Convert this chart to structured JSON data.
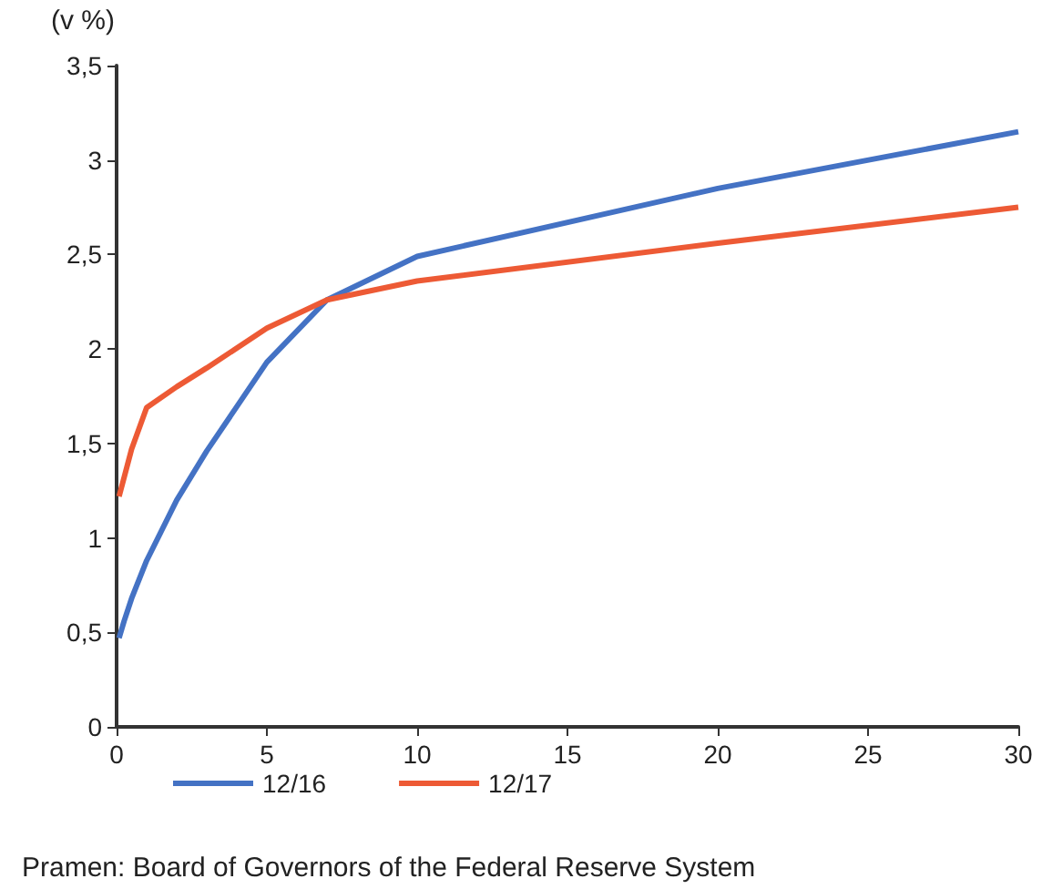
{
  "chart_data": {
    "type": "line",
    "ylabel": "(v %)",
    "x": [
      0.083,
      0.25,
      0.5,
      1,
      2,
      3,
      5,
      7,
      10,
      20,
      30
    ],
    "series": [
      {
        "name": "12/16",
        "color": "#4472c4",
        "values": [
          0.47,
          0.56,
          0.68,
          0.88,
          1.2,
          1.46,
          1.93,
          2.26,
          2.49,
          2.85,
          3.15
        ]
      },
      {
        "name": "12/17",
        "color": "#ed5a35",
        "values": [
          1.22,
          1.32,
          1.47,
          1.69,
          1.8,
          1.9,
          2.11,
          2.26,
          2.36,
          2.56,
          2.75
        ]
      }
    ],
    "xlim": [
      0,
      30
    ],
    "xticks": [
      0,
      5,
      10,
      15,
      20,
      25,
      30
    ],
    "ylim": [
      0,
      3.5
    ],
    "yticks": [
      {
        "value": 0,
        "label": "0"
      },
      {
        "value": 0.5,
        "label": "0,5"
      },
      {
        "value": 1,
        "label": "1"
      },
      {
        "value": 1.5,
        "label": "1,5"
      },
      {
        "value": 2,
        "label": "2"
      },
      {
        "value": 2.5,
        "label": "2,5"
      },
      {
        "value": 3,
        "label": "3"
      },
      {
        "value": 3.5,
        "label": "3,5"
      }
    ],
    "grid": false,
    "legend": "bottom",
    "marker": "none",
    "line_style": "solid",
    "annotations": [
      "Pramen: Board of Governors of the Federal Reserve System"
    ]
  }
}
